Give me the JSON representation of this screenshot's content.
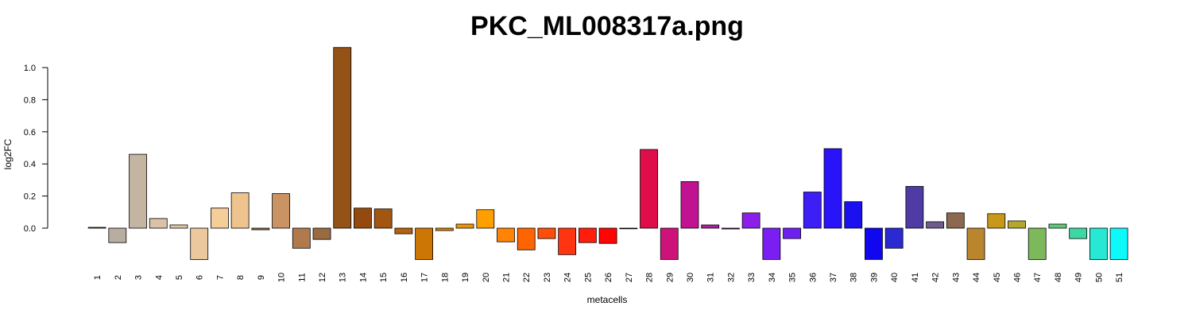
{
  "chart_data": {
    "type": "bar",
    "title": "PKC_ML008317a.png",
    "xlabel": "metacells",
    "ylabel": "log2FC",
    "ylim": [
      -0.195,
      1.12
    ],
    "yticks": [
      0.0,
      0.2,
      0.4,
      0.6,
      0.8,
      1.0
    ],
    "ytick_labels": [
      "0.0",
      "0.2",
      "0.4",
      "0.6",
      "0.8",
      "1.0"
    ],
    "grid": false,
    "legend": "none",
    "categories": [
      "1",
      "2",
      "3",
      "4",
      "5",
      "6",
      "7",
      "8",
      "9",
      "10",
      "11",
      "12",
      "13",
      "14",
      "15",
      "16",
      "17",
      "18",
      "19",
      "20",
      "21",
      "22",
      "23",
      "24",
      "25",
      "26",
      "27",
      "28",
      "29",
      "30",
      "31",
      "32",
      "33",
      "34",
      "35",
      "36",
      "37",
      "38",
      "39",
      "40",
      "41",
      "42",
      "43",
      "44",
      "45",
      "46",
      "47",
      "48",
      "49",
      "50",
      "51"
    ],
    "values": [
      0.005,
      -0.09,
      0.46,
      0.06,
      0.02,
      -0.195,
      0.125,
      0.22,
      -0.01,
      0.215,
      -0.125,
      -0.07,
      1.125,
      0.125,
      0.12,
      -0.035,
      -0.195,
      -0.015,
      0.025,
      0.115,
      -0.085,
      -0.135,
      -0.065,
      -0.165,
      -0.09,
      -0.095,
      0.0,
      0.49,
      -0.195,
      0.29,
      0.02,
      -0.005,
      0.095,
      -0.195,
      -0.065,
      0.225,
      0.495,
      0.165,
      -0.195,
      -0.125,
      0.26,
      0.04,
      0.095,
      -0.195,
      0.09,
      0.045,
      -0.195,
      0.025,
      -0.065,
      -0.195,
      -0.195
    ],
    "colors": [
      "#6b8e23",
      "#b8ada0",
      "#c4b5a3",
      "#d9c2a5",
      "#e6c8a0",
      "#ebc89e",
      "#f5cd98",
      "#efc38e",
      "#a0744f",
      "#c99364",
      "#b07a4c",
      "#9a6b42",
      "#955217",
      "#944a0f",
      "#a25612",
      "#b5630c",
      "#cc7606",
      "#df8705",
      "#ef9603",
      "#fd9f01",
      "#ff8405",
      "#fe6502",
      "#ff4e0a",
      "#ff3512",
      "#ff1d0c",
      "#ff0402",
      "#d4144a",
      "#e00d4b",
      "#cd1279",
      "#c11291",
      "#b21aa8",
      "#9a1ab5",
      "#8b1fe9",
      "#7a1ef2",
      "#6e20f0",
      "#3d1ef5",
      "#2913f9",
      "#1b10f0",
      "#1007ee",
      "#2a2ad0",
      "#4f3ba3",
      "#6e5c8d",
      "#8d6851",
      "#b9862e",
      "#c8981a",
      "#b4a72c",
      "#7db95b",
      "#5fcc7b",
      "#3cd8a4",
      "#27e8d4",
      "#0df9fb"
    ]
  }
}
